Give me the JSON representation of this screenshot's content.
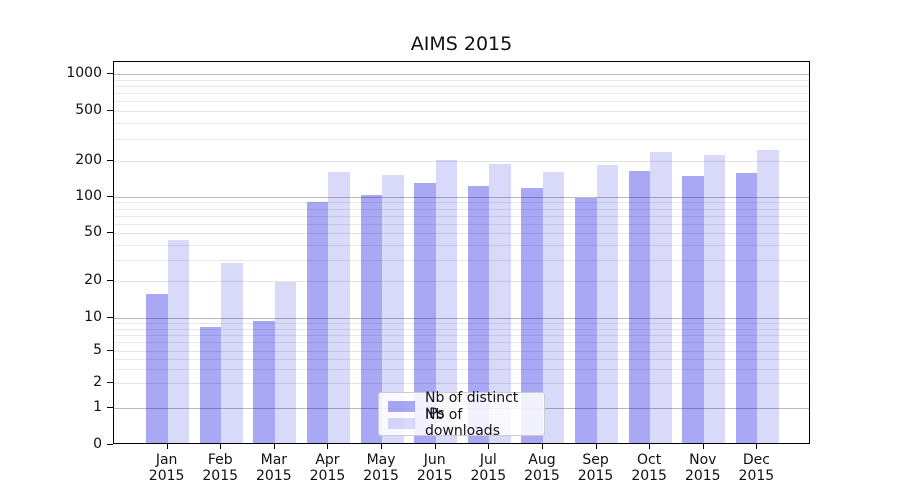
{
  "title": "AIMS 2015",
  "legend": {
    "items": [
      {
        "label": "Nb of distinct IPs",
        "series": "ips"
      },
      {
        "label": "Nb of downloads",
        "series": "dls"
      }
    ]
  },
  "colors": {
    "bar_distinct_ips": "rgba(0,0,226,0.34)",
    "bar_downloads": "rgba(0,0,215,0.15)",
    "grid_decade": "#b9b9b9",
    "grid_other": "#e6e6e6",
    "axis": "#000000",
    "text": "#111111"
  },
  "chart_data": {
    "type": "bar",
    "title": "AIMS 2015",
    "categories": [
      "Jan 2015",
      "Feb 2015",
      "Mar 2015",
      "Apr 2015",
      "May 2015",
      "Jun 2015",
      "Jul 2015",
      "Aug 2015",
      "Sep 2015",
      "Oct 2015",
      "Nov 2015",
      "Dec 2015"
    ],
    "months": [
      "Jan",
      "Feb",
      "Mar",
      "Apr",
      "May",
      "Jun",
      "Jul",
      "Aug",
      "Sep",
      "Oct",
      "Nov",
      "Dec"
    ],
    "year": "2015",
    "series": [
      {
        "name": "Nb of distinct IPs",
        "values": [
          15,
          8,
          9,
          87,
          100,
          126,
          119,
          114,
          95,
          159,
          145,
          153
        ]
      },
      {
        "name": "Nb of downloads",
        "values": [
          42,
          27,
          19,
          156,
          147,
          197,
          182,
          156,
          178,
          226,
          215,
          235
        ]
      }
    ],
    "xlabel": "",
    "ylabel": "",
    "yscale": "symlog-like",
    "yticks": [
      0,
      1,
      2,
      5,
      10,
      20,
      50,
      100,
      200,
      500,
      1000
    ],
    "yminorticks": [
      3,
      4,
      6,
      7,
      8,
      9,
      30,
      40,
      60,
      70,
      80,
      90,
      300,
      400,
      600,
      700,
      800,
      900
    ],
    "ylim": [
      0,
      1200
    ],
    "grid": true,
    "legend_position": "inside bottom-center"
  }
}
